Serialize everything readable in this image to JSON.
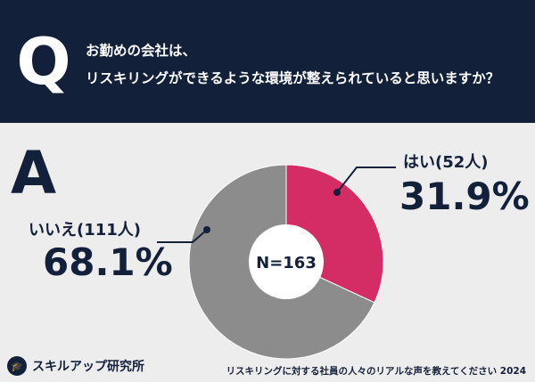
{
  "question": {
    "letter": "Q",
    "line1": "お勤めの会社は、",
    "line2": "リスキリングができるような環境が整えられていると思いますか？"
  },
  "answer_letter": "A",
  "chart_data": {
    "type": "pie",
    "center_label": "N=163",
    "slices": [
      {
        "label": "はい(52人)",
        "count": 52,
        "percent_label": "31.9%",
        "value": 31.9,
        "color": "#d42c64"
      },
      {
        "label": "いいえ(111人)",
        "count": 111,
        "percent_label": "68.1%",
        "value": 68.1,
        "color": "#8c8c8c"
      }
    ]
  },
  "footer": {
    "brand": "スキルアップ研究所",
    "note": "リスキリングに対する社員の人々のリアルな声を教えてください 2024"
  }
}
